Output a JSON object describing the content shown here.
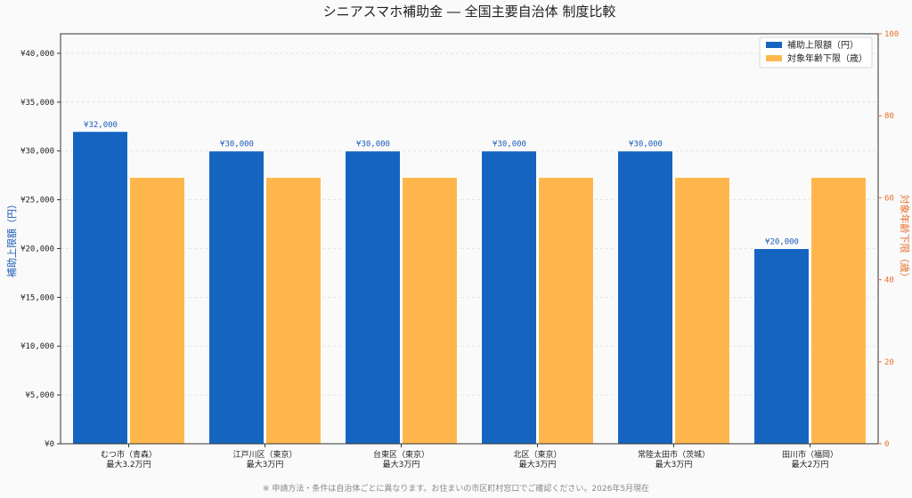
{
  "chart_data": {
    "type": "bar",
    "title": "シニアスマホ補助金 ― 全国主要自治体 制度比較",
    "categories": [
      [
        "むつ市（青森）",
        "最大3.2万円"
      ],
      [
        "江戸川区（東京）",
        "最大3万円"
      ],
      [
        "台東区（東京）",
        "最大3万円"
      ],
      [
        "北区（東京）",
        "最大3万円"
      ],
      [
        "常陸太田市（茨城）",
        "最大3万円"
      ],
      [
        "田川市（福岡）",
        "最大2万円"
      ]
    ],
    "series": [
      {
        "name": "補助上限額（円）",
        "axis": "left",
        "color": "#1565c0",
        "values": [
          32000,
          30000,
          30000,
          30000,
          30000,
          20000
        ],
        "data_labels": [
          "¥32,000",
          "¥30,000",
          "¥30,000",
          "¥30,000",
          "¥30,000",
          "¥20,000"
        ]
      },
      {
        "name": "対象年齢下限（歳）",
        "axis": "right",
        "color": "#ffb74d",
        "values": [
          65,
          65,
          65,
          65,
          65,
          65
        ]
      }
    ],
    "ylabel": "補助上限額（円）",
    "y2label": "対象年齢下限（歳）",
    "ylim": [
      0,
      42000
    ],
    "y2lim": [
      0,
      100
    ],
    "yticks": [
      0,
      5000,
      10000,
      15000,
      20000,
      25000,
      30000,
      35000,
      40000
    ],
    "ytick_labels": [
      "¥0",
      "¥5,000",
      "¥10,000",
      "¥15,000",
      "¥20,000",
      "¥25,000",
      "¥30,000",
      "¥35,000",
      "¥40,000"
    ],
    "y2ticks": [
      0,
      20,
      40,
      60,
      80,
      100
    ],
    "y2tick_labels": [
      "0",
      "20",
      "40",
      "60",
      "80",
      "100"
    ],
    "grid": true,
    "legend_position": "top-right",
    "footnote": "※ 申請方法・条件は自治体ごとに異なります。お住まいの市区町村窓口でご確認ください。2026年5月現在"
  }
}
